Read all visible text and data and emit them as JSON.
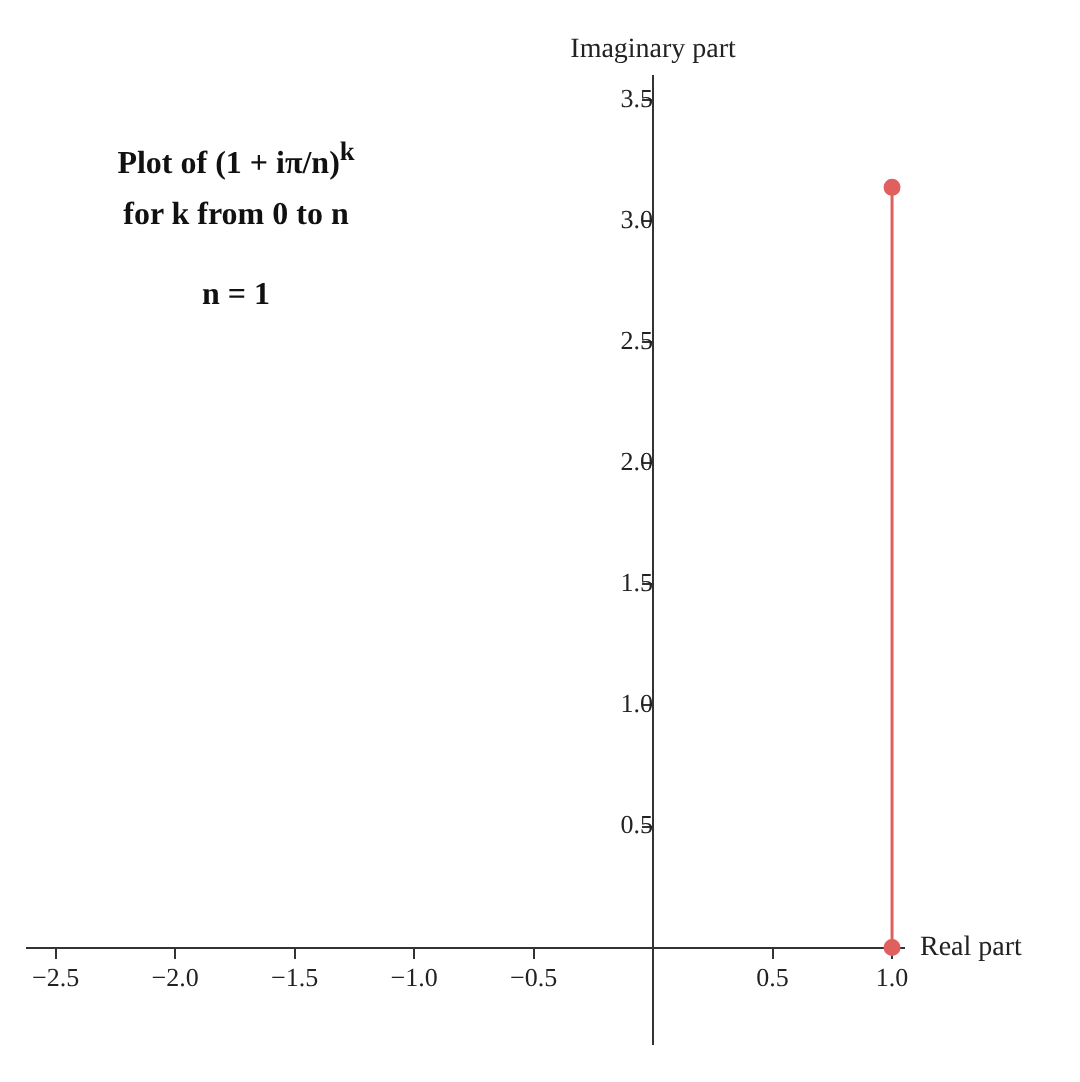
{
  "chart_data": {
    "type": "line",
    "title": "Plot of (1 + iπ/n)$^{k}$",
    "subtitle": "for k from 0 to n",
    "annotations": [
      "n = 1"
    ],
    "xlabel": "Real part",
    "ylabel": "Imaginary part",
    "x": [
      1,
      1
    ],
    "series": [
      {
        "color": "#e06060",
        "values": [
          0,
          3.14
        ]
      }
    ],
    "xlim": [
      -2.62,
      1.05
    ],
    "ylim": [
      -0.4,
      3.6
    ],
    "xticks": [
      {
        "value": -2.5,
        "label": "−2.5"
      },
      {
        "value": -2,
        "label": "−2.0"
      },
      {
        "value": -1.5,
        "label": "−1.5"
      },
      {
        "value": -1,
        "label": "−1.0"
      },
      {
        "value": -0.5,
        "label": "−0.5"
      },
      {
        "value": 0.5,
        "label": "0.5"
      },
      {
        "value": 1,
        "label": "1.0"
      }
    ],
    "yticks": [
      {
        "value": 0.5,
        "label": "0.5"
      },
      {
        "value": 1,
        "label": "1.0"
      },
      {
        "value": 1.5,
        "label": "1.5"
      },
      {
        "value": 2,
        "label": "2.0"
      },
      {
        "value": 2.5,
        "label": "2.5"
      },
      {
        "value": 3,
        "label": "3.0"
      },
      {
        "value": 3.5,
        "label": "3.5"
      }
    ],
    "grid": false,
    "legend": false,
    "marker": "circle",
    "line_style": "solid"
  }
}
